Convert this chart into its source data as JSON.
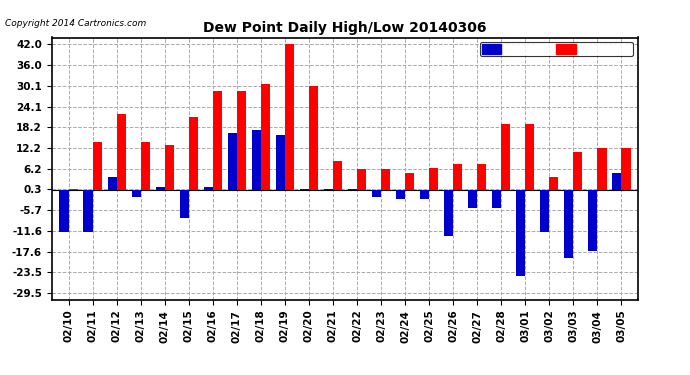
{
  "title": "Dew Point Daily High/Low 20140306",
  "copyright": "Copyright 2014 Cartronics.com",
  "dates": [
    "02/10",
    "02/11",
    "02/12",
    "02/13",
    "02/14",
    "02/15",
    "02/16",
    "02/17",
    "02/18",
    "02/19",
    "02/20",
    "02/21",
    "02/22",
    "02/23",
    "02/24",
    "02/25",
    "02/26",
    "02/27",
    "02/28",
    "03/01",
    "03/02",
    "03/03",
    "03/04",
    "03/05"
  ],
  "high_values": [
    0.3,
    14.0,
    22.0,
    14.0,
    13.0,
    21.0,
    28.5,
    28.5,
    30.5,
    42.0,
    30.1,
    8.5,
    6.2,
    6.2,
    5.0,
    6.5,
    7.5,
    7.5,
    19.0,
    19.0,
    4.0,
    11.0,
    12.2,
    12.2
  ],
  "low_values": [
    -12.0,
    -12.0,
    4.0,
    -2.0,
    1.0,
    -8.0,
    1.0,
    16.5,
    17.5,
    16.0,
    0.3,
    0.3,
    0.3,
    -2.0,
    -2.5,
    -2.5,
    -13.0,
    -5.0,
    -5.0,
    -24.5,
    -12.0,
    -19.5,
    -17.5,
    5.0
  ],
  "high_color": "#ff0000",
  "low_color": "#0000cc",
  "bg_color": "#ffffff",
  "grid_color": "#aaaaaa",
  "yticks": [
    42.0,
    36.0,
    30.1,
    24.1,
    18.2,
    12.2,
    6.2,
    0.3,
    -5.7,
    -11.6,
    -17.6,
    -23.5,
    -29.5
  ],
  "ylim": [
    -31.5,
    44.0
  ],
  "bar_width": 0.38
}
